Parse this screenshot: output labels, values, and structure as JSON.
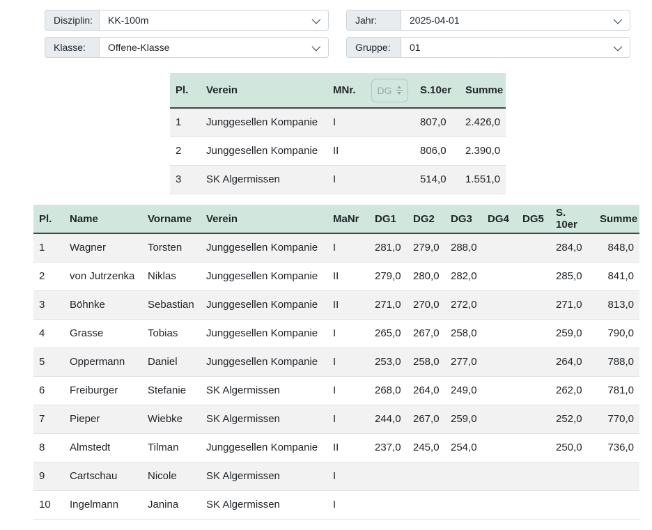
{
  "filters": {
    "disziplin": {
      "label": "Disziplin:",
      "value": "KK-100m"
    },
    "klasse": {
      "label": "Klasse:",
      "value": "Offene-Klasse"
    },
    "jahr": {
      "label": "Jahr:",
      "value": "2025-04-01"
    },
    "gruppe": {
      "label": "Gruppe:",
      "value": "01"
    }
  },
  "team_table": {
    "headers": {
      "pl": "Pl.",
      "verein": "Verein",
      "mnr": "MNr.",
      "s10er": "S.10er",
      "summe": "Summe"
    },
    "dg_control": {
      "label": "DG",
      "icon": "number-spinner"
    },
    "rows": [
      [
        "1",
        "Junggesellen Kompanie",
        "I",
        "",
        "807,0",
        "2.426,0"
      ],
      [
        "2",
        "Junggesellen Kompanie",
        "II",
        "",
        "806,0",
        "2.390,0"
      ],
      [
        "3",
        "SK Algermissen",
        "I",
        "",
        "514,0",
        "1.551,0"
      ]
    ]
  },
  "results_table": {
    "headers": [
      "Pl.",
      "Name",
      "Vorname",
      "Verein",
      "MaNr",
      "DG1",
      "DG2",
      "DG3",
      "DG4",
      "DG5",
      "S. 10er",
      "Summe"
    ],
    "rows": [
      [
        "1",
        "Wagner",
        "Torsten",
        "Junggesellen Kompanie",
        "I",
        "281,0",
        "279,0",
        "288,0",
        "",
        "",
        "284,0",
        "848,0"
      ],
      [
        "2",
        "von Jutrzenka",
        "Niklas",
        "Junggesellen Kompanie",
        "II",
        "279,0",
        "280,0",
        "282,0",
        "",
        "",
        "285,0",
        "841,0"
      ],
      [
        "3",
        "Böhnke",
        "Sebastian",
        "Junggesellen Kompanie",
        "II",
        "271,0",
        "270,0",
        "272,0",
        "",
        "",
        "271,0",
        "813,0"
      ],
      [
        "4",
        "Grasse",
        "Tobias",
        "Junggesellen Kompanie",
        "I",
        "265,0",
        "267,0",
        "258,0",
        "",
        "",
        "259,0",
        "790,0"
      ],
      [
        "5",
        "Oppermann",
        "Daniel",
        "Junggesellen Kompanie",
        "I",
        "253,0",
        "258,0",
        "277,0",
        "",
        "",
        "264,0",
        "788,0"
      ],
      [
        "6",
        "Freiburger",
        "Stefanie",
        "SK Algermissen",
        "I",
        "268,0",
        "264,0",
        "249,0",
        "",
        "",
        "262,0",
        "781,0"
      ],
      [
        "7",
        "Pieper",
        "Wiebke",
        "SK Algermissen",
        "I",
        "244,0",
        "267,0",
        "259,0",
        "",
        "",
        "252,0",
        "770,0"
      ],
      [
        "8",
        "Almstedt",
        "Tilman",
        "Junggesellen Kompanie",
        "II",
        "237,0",
        "245,0",
        "254,0",
        "",
        "",
        "250,0",
        "736,0"
      ],
      [
        "9",
        "Cartschau",
        "Nicole",
        "SK Algermissen",
        "I",
        "",
        "",
        "",
        "",
        "",
        "",
        ""
      ],
      [
        "10",
        "Ingelmann",
        "Janina",
        "SK Algermissen",
        "I",
        "",
        "",
        "",
        "",
        "",
        "",
        ""
      ]
    ]
  },
  "colors": {
    "table_header_bg": "#d1e7dd",
    "stripe_bg": "#f2f2f2",
    "border": "#dee2e6",
    "label_bg": "#e9ecef",
    "control_border": "#ced4da"
  }
}
